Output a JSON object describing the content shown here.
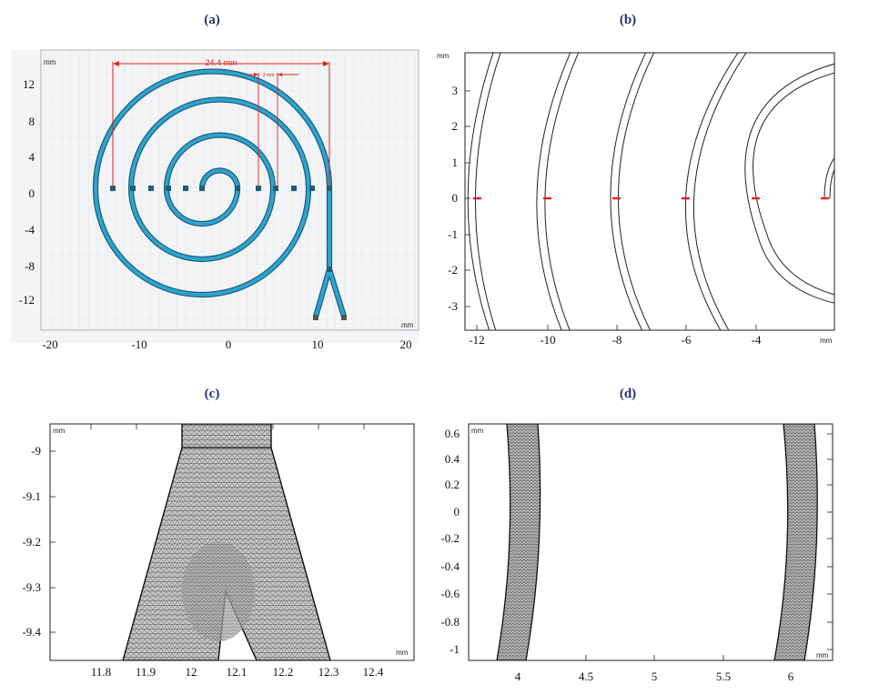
{
  "panels": {
    "a": {
      "label": "(a)",
      "unit_top": "mm",
      "unit_right": "mm",
      "yticks": [
        "12",
        "8",
        "4",
        "0",
        "-4",
        "-8",
        "-12"
      ],
      "xticks": [
        "-20",
        "-10",
        "0",
        "10",
        "20"
      ],
      "dim_main": "24.4 mm",
      "dim_small": "2 mm"
    },
    "b": {
      "label": "(b)",
      "unit_top": "mm",
      "unit_right": "mm",
      "yticks": [
        "3",
        "2",
        "1",
        "0",
        "-1",
        "-2",
        "-3"
      ],
      "xticks": [
        "-12",
        "-10",
        "-8",
        "-6",
        "-4"
      ]
    },
    "c": {
      "label": "(c)",
      "unit_top": "mm",
      "unit_right": "mm",
      "yticks": [
        "-9",
        "-9.1",
        "-9.2",
        "-9.3",
        "-9.4"
      ],
      "xticks": [
        "11.8",
        "11.9",
        "12",
        "12.1",
        "12.2",
        "12.3",
        "12.4"
      ]
    },
    "d": {
      "label": "(d)",
      "unit_top": "mm",
      "unit_right": "mm",
      "yticks": [
        "0.6",
        "0.4",
        "0.2",
        "0",
        "-0.2",
        "-0.4",
        "-0.6",
        "-0.8",
        "-1"
      ],
      "xticks": [
        "4",
        "4.5",
        "5",
        "5.5",
        "6"
      ]
    }
  },
  "colors": {
    "spiral": "#2ea3cf",
    "spiral_edge": "#1b5f7a",
    "dimension": "#e0231b",
    "label": "#2a2f6e",
    "mesh": "#8a8a8a"
  }
}
